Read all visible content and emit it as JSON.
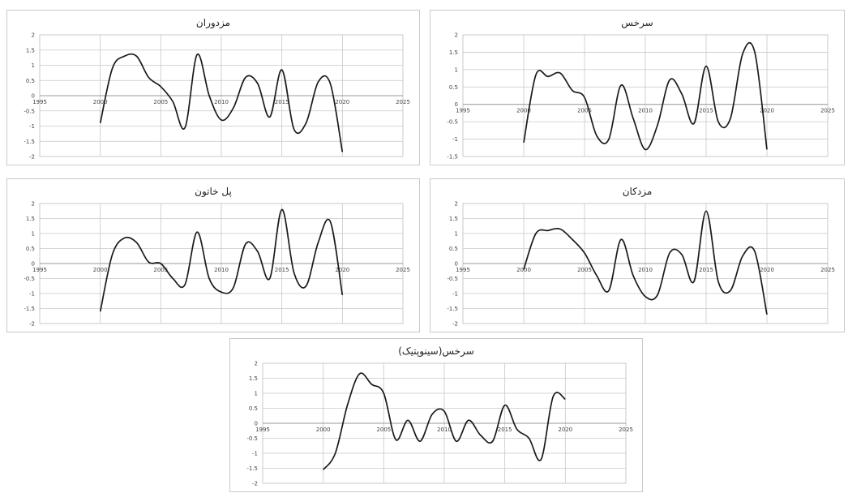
{
  "chart_data": [
    {
      "type": "line",
      "title": "مزدوران",
      "xlim": [
        1995,
        2025
      ],
      "ylim": [
        -2,
        2
      ],
      "xticks": [
        "1995",
        "2000",
        "2005",
        "2010",
        "2015",
        "2020",
        "2025"
      ],
      "yticks": [
        "2",
        "1.5",
        "1",
        "0.5",
        "0",
        "-0.5",
        "-1",
        "-1.5",
        "-2"
      ],
      "grid": true,
      "series": [
        {
          "x": [
            2000,
            2001,
            2002,
            2003,
            2004,
            2005,
            2006,
            2007,
            2008,
            2009,
            2010,
            2011,
            2012,
            2013,
            2014,
            2015,
            2016,
            2017,
            2018,
            2019,
            2020
          ],
          "y": [
            -0.9,
            0.9,
            1.3,
            1.3,
            0.6,
            0.3,
            -0.2,
            -1.05,
            1.35,
            0.0,
            -0.8,
            -0.4,
            0.6,
            0.4,
            -0.7,
            0.85,
            -1.1,
            -0.9,
            0.45,
            0.4,
            -1.85
          ]
        }
      ]
    },
    {
      "type": "line",
      "title": "سرخس",
      "xlim": [
        1995,
        2025
      ],
      "ylim": [
        -1.5,
        2
      ],
      "xticks": [
        "1995",
        "2000",
        "2005",
        "2010",
        "2015",
        "2020",
        "2025"
      ],
      "yticks": [
        "2",
        "1.5",
        "1",
        "0.5",
        "0",
        "-0.5",
        "-1",
        "-1.5"
      ],
      "grid": true,
      "series": [
        {
          "x": [
            2000,
            2001,
            2002,
            2003,
            2004,
            2005,
            2006,
            2007,
            2008,
            2009,
            2010,
            2011,
            2012,
            2013,
            2014,
            2015,
            2016,
            2017,
            2018,
            2019,
            2020
          ],
          "y": [
            -1.1,
            0.85,
            0.8,
            0.9,
            0.4,
            0.2,
            -0.9,
            -1.0,
            0.55,
            -0.4,
            -1.3,
            -0.6,
            0.7,
            0.3,
            -0.55,
            1.1,
            -0.5,
            -0.4,
            1.45,
            1.5,
            -1.3
          ]
        }
      ]
    },
    {
      "type": "line",
      "title": "پل خاتون",
      "xlim": [
        1995,
        2025
      ],
      "ylim": [
        -2,
        2
      ],
      "xticks": [
        "1995",
        "2000",
        "2005",
        "2010",
        "2015",
        "2020",
        "2025"
      ],
      "yticks": [
        "2",
        "1.5",
        "1",
        "0.5",
        "0",
        "-0.5",
        "-1",
        "-1.5",
        "-2"
      ],
      "grid": true,
      "series": [
        {
          "x": [
            2000,
            2001,
            2002,
            2003,
            2004,
            2005,
            2006,
            2007,
            2008,
            2009,
            2010,
            2011,
            2012,
            2013,
            2014,
            2015,
            2016,
            2017,
            2018,
            2019,
            2020
          ],
          "y": [
            -1.6,
            0.3,
            0.85,
            0.7,
            0.05,
            0.0,
            -0.5,
            -0.7,
            1.05,
            -0.5,
            -0.95,
            -0.8,
            0.65,
            0.4,
            -0.5,
            1.8,
            -0.3,
            -0.75,
            0.7,
            1.4,
            -1.05
          ]
        }
      ]
    },
    {
      "type": "line",
      "title": "مزدکان",
      "xlim": [
        1995,
        2025
      ],
      "ylim": [
        -2,
        2
      ],
      "xticks": [
        "1995",
        "2000",
        "2005",
        "2010",
        "2015",
        "2020",
        "2025"
      ],
      "yticks": [
        "2",
        "1.5",
        "1",
        "0.5",
        "0",
        "-0.5",
        "-1",
        "-1.5",
        "-2"
      ],
      "grid": true,
      "series": [
        {
          "x": [
            2000,
            2001,
            2002,
            2003,
            2004,
            2005,
            2006,
            2007,
            2008,
            2009,
            2010,
            2011,
            2012,
            2013,
            2014,
            2015,
            2016,
            2017,
            2018,
            2019,
            2020
          ],
          "y": [
            -0.2,
            1.0,
            1.1,
            1.15,
            0.8,
            0.35,
            -0.4,
            -0.9,
            0.8,
            -0.4,
            -1.1,
            -1.05,
            0.35,
            0.3,
            -0.6,
            1.75,
            -0.6,
            -0.9,
            0.25,
            0.4,
            -1.7
          ]
        }
      ]
    },
    {
      "type": "line",
      "title": "سرخس(سینوپتیک)",
      "xlim": [
        1995,
        2025
      ],
      "ylim": [
        -2,
        2
      ],
      "xticks": [
        "1995",
        "2000",
        "2005",
        "2010",
        "2015",
        "2020",
        "2025"
      ],
      "yticks": [
        "2",
        "1.5",
        "1",
        "0.5",
        "0",
        "-0.5",
        "-1",
        "-1.5",
        "-2"
      ],
      "grid": true,
      "series": [
        {
          "x": [
            2000,
            2001,
            2002,
            2003,
            2004,
            2005,
            2006,
            2007,
            2008,
            2009,
            2010,
            2011,
            2012,
            2013,
            2014,
            2015,
            2016,
            2017,
            2018,
            2019,
            2020
          ],
          "y": [
            -1.55,
            -1.0,
            0.6,
            1.65,
            1.3,
            1.0,
            -0.55,
            0.1,
            -0.6,
            0.3,
            0.4,
            -0.6,
            0.1,
            -0.4,
            -0.6,
            0.6,
            -0.2,
            -0.5,
            -1.2,
            0.9,
            0.8
          ]
        }
      ]
    }
  ]
}
